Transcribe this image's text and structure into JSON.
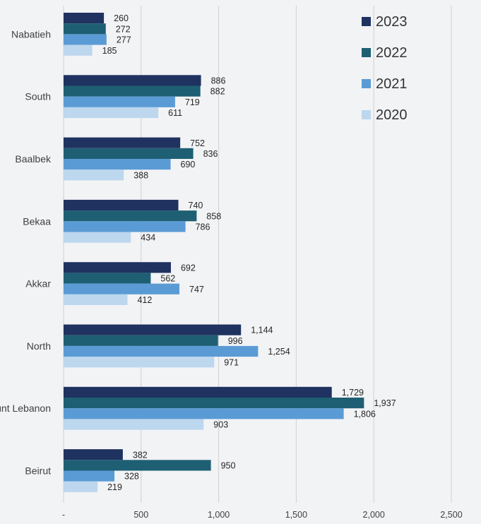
{
  "chart_data": {
    "type": "bar",
    "orientation": "horizontal",
    "categories": [
      "Nabatieh",
      "South",
      "Baalbek",
      "Bekaa",
      "Akkar",
      "North",
      "Mount Lebanon",
      "Beirut"
    ],
    "series": [
      {
        "name": "2023",
        "color": "#1f3260",
        "values": [
          260,
          886,
          752,
          740,
          692,
          1144,
          1729,
          382
        ]
      },
      {
        "name": "2022",
        "color": "#1f5f74",
        "values": [
          272,
          882,
          836,
          858,
          562,
          996,
          1937,
          950
        ]
      },
      {
        "name": "2021",
        "color": "#5b9bd5",
        "values": [
          277,
          719,
          690,
          786,
          747,
          1254,
          1806,
          328
        ]
      },
      {
        "name": "2020",
        "color": "#bdd7ee",
        "values": [
          185,
          611,
          388,
          434,
          412,
          971,
          903,
          219
        ]
      }
    ],
    "x_ticks": [
      "-",
      "500",
      "1,000",
      "1,500",
      "2,000",
      "2,500"
    ],
    "xlim": [
      0,
      2500
    ],
    "grid": "vertical",
    "legend_position": "top-right"
  }
}
